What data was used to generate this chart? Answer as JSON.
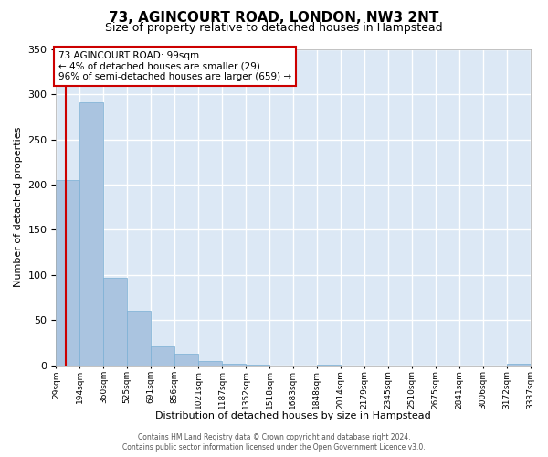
{
  "title": "73, AGINCOURT ROAD, LONDON, NW3 2NT",
  "subtitle": "Size of property relative to detached houses in Hampstead",
  "xlabel": "Distribution of detached houses by size in Hampstead",
  "ylabel": "Number of detached properties",
  "bar_color": "#aac4e0",
  "bar_edge_color": "#7aafd4",
  "background_color": "#dce8f5",
  "grid_color": "#ffffff",
  "annotation_box_color": "#cc0000",
  "annotation_line": "73 AGINCOURT ROAD: 99sqm",
  "annotation_line2": "← 4% of detached houses are smaller (29)",
  "annotation_line3": "96% of semi-detached houses are larger (659) →",
  "property_line_x": 99,
  "ylim": [
    0,
    350
  ],
  "yticks": [
    0,
    50,
    100,
    150,
    200,
    250,
    300,
    350
  ],
  "bin_edges": [
    29,
    194,
    360,
    525,
    691,
    856,
    1021,
    1187,
    1352,
    1518,
    1683,
    1848,
    2014,
    2179,
    2345,
    2510,
    2675,
    2841,
    3006,
    3172,
    3337
  ],
  "bar_heights": [
    205,
    291,
    97,
    60,
    21,
    13,
    5,
    2,
    1,
    0,
    0,
    1,
    0,
    0,
    0,
    0,
    0,
    0,
    0,
    2
  ],
  "footer1": "Contains HM Land Registry data © Crown copyright and database right 2024.",
  "footer2": "Contains public sector information licensed under the Open Government Licence v3.0."
}
